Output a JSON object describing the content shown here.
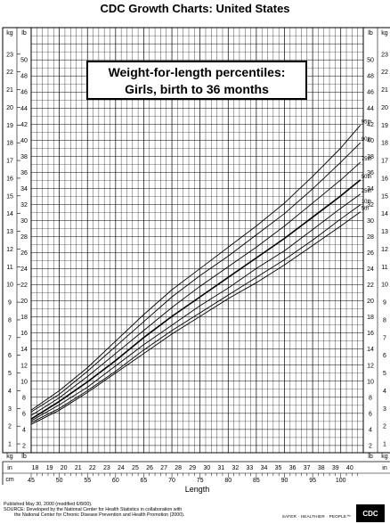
{
  "header": {
    "title": "CDC Growth Charts: United States"
  },
  "chart_data": {
    "type": "line",
    "title": "Weight-for-length percentiles:",
    "subtitle": "Girls, birth to 36 months",
    "xlabel": "Length",
    "x_unit_cm": "cm",
    "x_unit_in": "in",
    "y_unit_left_kg": "kg",
    "y_unit_lb": "lb",
    "y_unit_right_kg": "kg",
    "xlim_cm": [
      45,
      104
    ],
    "ylim_kg": [
      0.5,
      24.5
    ],
    "grid": true,
    "x_ticks_cm": [
      45,
      50,
      55,
      60,
      65,
      70,
      75,
      80,
      85,
      90,
      95,
      100
    ],
    "x_ticks_in": [
      18,
      19,
      20,
      21,
      22,
      23,
      24,
      25,
      26,
      27,
      28,
      29,
      30,
      31,
      32,
      33,
      34,
      35,
      36,
      37,
      38,
      39,
      40
    ],
    "y_ticks_kg": [
      1,
      2,
      3,
      4,
      5,
      6,
      7,
      8,
      9,
      10,
      11,
      12,
      13,
      14,
      15,
      16,
      17,
      18,
      19,
      20,
      21,
      22,
      23
    ],
    "y_ticks_lb": [
      2,
      4,
      6,
      8,
      10,
      12,
      14,
      16,
      18,
      20,
      22,
      24,
      26,
      28,
      30,
      32,
      34,
      36,
      38,
      40,
      42,
      44,
      46,
      48,
      50
    ],
    "x": [
      45,
      50,
      55,
      60,
      65,
      70,
      75,
      80,
      85,
      90,
      95,
      100,
      103.5
    ],
    "series": [
      {
        "name": "95th",
        "values": [
          2.9,
          4.0,
          5.3,
          6.8,
          8.3,
          9.7,
          10.9,
          12.1,
          13.3,
          14.6,
          16.1,
          17.7,
          19.0
        ]
      },
      {
        "name": "90th",
        "values": [
          2.8,
          3.8,
          5.1,
          6.5,
          7.9,
          9.3,
          10.5,
          11.6,
          12.8,
          14.0,
          15.4,
          16.9,
          18.0
        ]
      },
      {
        "name": "75th",
        "values": [
          2.6,
          3.6,
          4.8,
          6.1,
          7.4,
          8.7,
          9.9,
          11.0,
          12.1,
          13.3,
          14.6,
          15.9,
          16.9
        ]
      },
      {
        "name": "50th",
        "values": [
          2.4,
          3.4,
          4.5,
          5.7,
          7.0,
          8.2,
          9.3,
          10.4,
          11.5,
          12.6,
          13.8,
          15.0,
          15.9
        ]
      },
      {
        "name": "25th",
        "values": [
          2.3,
          3.2,
          4.2,
          5.4,
          6.6,
          7.7,
          8.8,
          9.8,
          10.9,
          11.9,
          13.1,
          14.3,
          15.1
        ]
      },
      {
        "name": "10th",
        "values": [
          2.2,
          3.0,
          4.0,
          5.1,
          6.3,
          7.4,
          8.4,
          9.4,
          10.4,
          11.4,
          12.5,
          13.7,
          14.5
        ]
      },
      {
        "name": "5th",
        "values": [
          2.1,
          2.9,
          3.9,
          5.0,
          6.1,
          7.2,
          8.2,
          9.2,
          10.1,
          11.1,
          12.2,
          13.3,
          14.1
        ]
      }
    ]
  },
  "footer": {
    "published": "Published May 30, 2000 (modified 6/8/00).",
    "source_1": "SOURCE: Developed by the National Center for Health Statistics in collaboration with",
    "source_2": "the National Center for Chronic Disease Prevention and Health Promotion (2000).",
    "brand": "SAFER · HEALTHIER · PEOPLE™",
    "logo_text": "CDC"
  }
}
